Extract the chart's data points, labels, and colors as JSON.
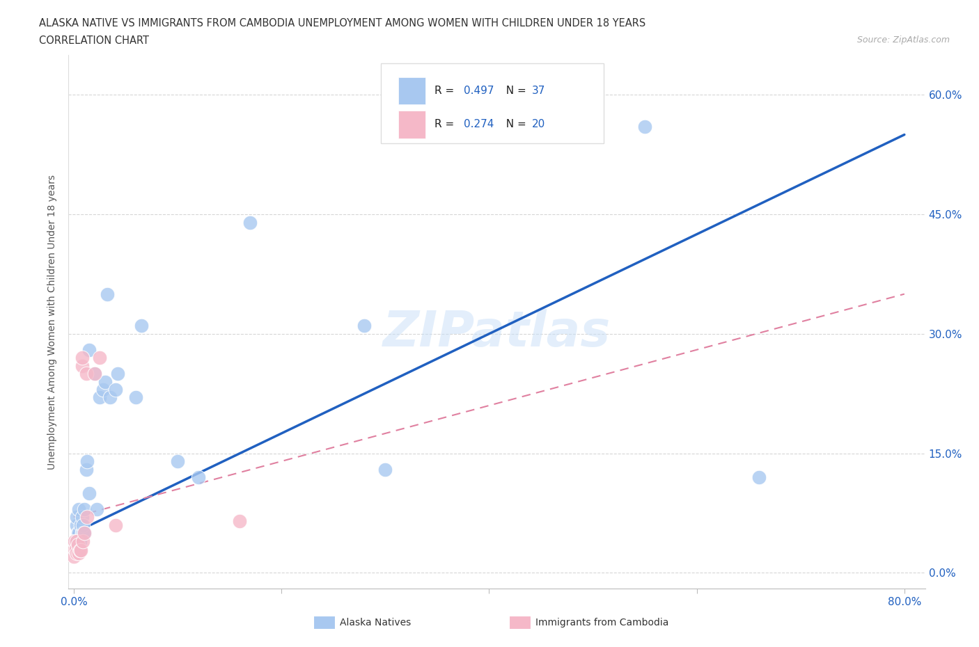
{
  "title_line1": "ALASKA NATIVE VS IMMIGRANTS FROM CAMBODIA UNEMPLOYMENT AMONG WOMEN WITH CHILDREN UNDER 18 YEARS",
  "title_line2": "CORRELATION CHART",
  "source": "Source: ZipAtlas.com",
  "ylabel": "Unemployment Among Women with Children Under 18 years",
  "legend_label1": "Alaska Natives",
  "legend_label2": "Immigrants from Cambodia",
  "R1": 0.497,
  "N1": 37,
  "R2": 0.274,
  "N2": 20,
  "color_blue": "#a8c8f0",
  "color_pink": "#f5b8c8",
  "color_line_blue": "#2060c0",
  "color_line_pink": "#e080a0",
  "yticks": [
    0.0,
    0.15,
    0.3,
    0.45,
    0.6
  ],
  "ytick_labels": [
    "0.0%",
    "15.0%",
    "30.0%",
    "45.0%",
    "60.0%"
  ],
  "xticks": [
    0.0,
    0.2,
    0.4,
    0.6,
    0.8
  ],
  "xtick_labels": [
    "0.0%",
    "",
    "",
    "",
    "80.0%"
  ],
  "xlim": [
    -0.005,
    0.82
  ],
  "ylim": [
    -0.02,
    0.65
  ],
  "alaska_x": [
    0.002,
    0.003,
    0.003,
    0.004,
    0.004,
    0.005,
    0.005,
    0.006,
    0.007,
    0.008,
    0.008,
    0.009,
    0.009,
    0.01,
    0.01,
    0.012,
    0.013,
    0.015,
    0.015,
    0.02,
    0.022,
    0.025,
    0.028,
    0.03,
    0.032,
    0.035,
    0.04,
    0.042,
    0.06,
    0.065,
    0.1,
    0.12,
    0.17,
    0.28,
    0.3,
    0.55,
    0.66
  ],
  "alaska_y": [
    0.04,
    0.06,
    0.07,
    0.03,
    0.05,
    0.05,
    0.08,
    0.04,
    0.06,
    0.05,
    0.07,
    0.05,
    0.06,
    0.05,
    0.08,
    0.13,
    0.14,
    0.1,
    0.28,
    0.25,
    0.08,
    0.22,
    0.23,
    0.24,
    0.35,
    0.22,
    0.23,
    0.25,
    0.22,
    0.31,
    0.14,
    0.12,
    0.44,
    0.31,
    0.13,
    0.56,
    0.12
  ],
  "cambodia_x": [
    0.0,
    0.001,
    0.001,
    0.002,
    0.003,
    0.003,
    0.004,
    0.005,
    0.006,
    0.007,
    0.008,
    0.008,
    0.009,
    0.01,
    0.012,
    0.013,
    0.02,
    0.025,
    0.04,
    0.16
  ],
  "cambodia_y": [
    0.02,
    0.03,
    0.04,
    0.03,
    0.025,
    0.04,
    0.035,
    0.025,
    0.028,
    0.028,
    0.26,
    0.27,
    0.04,
    0.05,
    0.25,
    0.07,
    0.25,
    0.27,
    0.06,
    0.065
  ],
  "blue_line_x0": 0.0,
  "blue_line_y0": 0.05,
  "blue_line_x1": 0.8,
  "blue_line_y1": 0.55,
  "pink_line_x0": 0.0,
  "pink_line_y0": 0.07,
  "pink_line_x1": 0.8,
  "pink_line_y1": 0.35,
  "watermark": "ZIPatlas",
  "background_color": "#ffffff",
  "grid_color": "#cccccc"
}
